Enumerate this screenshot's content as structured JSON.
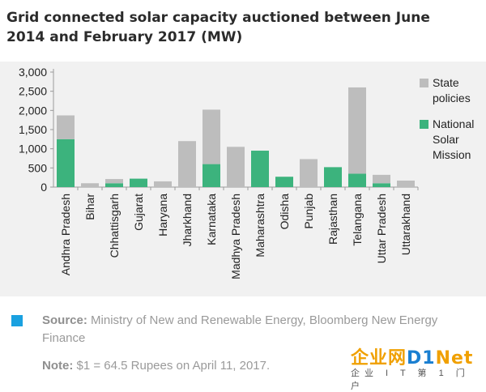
{
  "title": "Grid connected solar capacity auctioned between June 2014 and February 2017 (MW)",
  "chart_data": {
    "type": "bar",
    "stacked": true,
    "categories": [
      "Andhra Pradesh",
      "Bihar",
      "Chhattisgarh",
      "Gujarat",
      "Haryana",
      "Jharkhand",
      "Karnataka",
      "Madhya Pradesh",
      "Maharashtra",
      "Odisha",
      "Punjab",
      "Rajasthan",
      "Telangana",
      "Uttar Pradesh",
      "Uttarakhand"
    ],
    "series": [
      {
        "name": "National Solar Mission",
        "color": "#3cb37d",
        "values": [
          1250,
          0,
          100,
          220,
          0,
          0,
          600,
          0,
          950,
          270,
          0,
          520,
          350,
          100,
          0
        ]
      },
      {
        "name": "State policies",
        "color": "#bdbdbd",
        "values": [
          620,
          100,
          110,
          0,
          150,
          1200,
          1420,
          1050,
          0,
          0,
          730,
          0,
          2250,
          220,
          170
        ]
      }
    ],
    "ylim": [
      0,
      3000
    ],
    "yticks": [
      "0",
      "500",
      "1,000",
      "1,500",
      "2,000",
      "2,500",
      "3,000"
    ],
    "ytick_values": [
      0,
      500,
      1000,
      1500,
      2000,
      2500,
      3000
    ],
    "xlabel": "",
    "ylabel": "",
    "legend_placement": "right",
    "legend": [
      {
        "lines": [
          "State",
          "policies"
        ],
        "color": "#bdbdbd"
      },
      {
        "lines": [
          "National",
          "Solar",
          "Mission"
        ],
        "color": "#3cb37d"
      }
    ],
    "grid": false
  },
  "source": {
    "label": "Source:",
    "text": "Ministry of New and Renewable Energy, Bloomberg New Energy Finance",
    "marker_color": "#1aa1e0"
  },
  "note": {
    "label": "Note:",
    "text": "$1 = 64.5 Rupees on April 11, 2017."
  },
  "watermark": {
    "cn": "企业网",
    "d1": "D1",
    "net": "Net",
    "sub": "企业 I T 第 1 门户"
  }
}
